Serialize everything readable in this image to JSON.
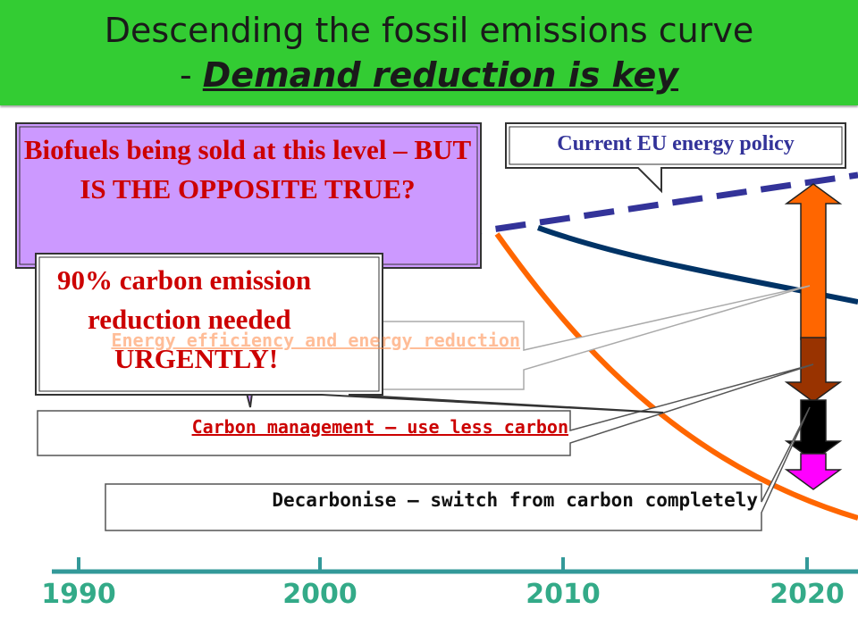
{
  "title": {
    "line1": "Descending the fossil emissions curve",
    "line2_prefix": "- ",
    "line2_emphasis": "Demand reduction is key"
  },
  "callouts": {
    "eu_policy": "Current EU energy policy",
    "biofuels": "Biofuels being sold at this level – BUT IS THE OPPOSITE TRUE?",
    "carbon_90_line1": "90% carbon emission",
    "carbon_90_line2": "reduction needed",
    "carbon_90_line3": "URGENTLY!",
    "energy_efficiency": "Energy efficiency and energy reduction",
    "carbon_management": "Carbon management – use less carbon",
    "decarbonise": "Decarbonise – switch from carbon completely"
  },
  "timeline": {
    "years": [
      "1990",
      "2000",
      "2010",
      "2020"
    ]
  },
  "colors": {
    "title_bg": "#33cc33",
    "dashed_line": "#333399",
    "navy_curve": "#003366",
    "orange_curve": "#ff6600",
    "timeline": "#339999",
    "callout_purple": "#cc99ff",
    "arrow_orange": "#ff6600",
    "arrow_brown": "#993300",
    "arrow_black": "#000000",
    "arrow_magenta": "#ff00ff"
  }
}
